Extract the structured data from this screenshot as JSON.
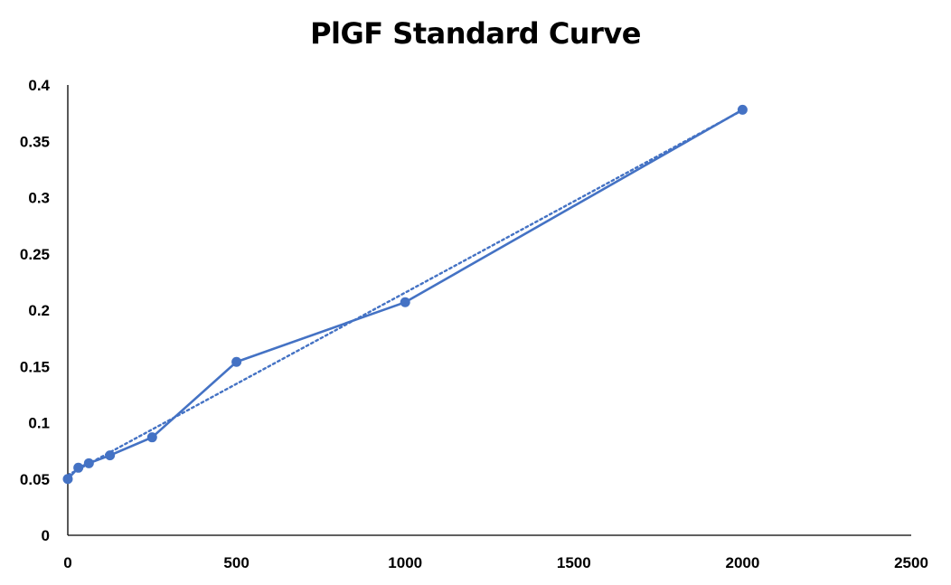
{
  "chart_data": {
    "type": "scatter",
    "title": "PlGF Standard Curve",
    "xlabel": "",
    "ylabel": "",
    "xlim": [
      0,
      2500
    ],
    "ylim": [
      0,
      0.4
    ],
    "x_ticks": [
      0,
      500,
      1000,
      1500,
      2000,
      2500
    ],
    "y_ticks": [
      0,
      0.05,
      0.1,
      0.15,
      0.2,
      0.25,
      0.3,
      0.35,
      0.4
    ],
    "x_tick_labels": [
      "0",
      "500",
      "1000",
      "1500",
      "2000",
      "2500"
    ],
    "y_tick_labels": [
      "0",
      "0.05",
      "0.1",
      "0.15",
      "0.2",
      "0.25",
      "0.3",
      "0.35",
      "0.4"
    ],
    "grid": false,
    "legend": "none",
    "series": [
      {
        "style": "line-with-markers",
        "color": "#4472C4",
        "x": [
          0,
          31.25,
          62.5,
          125,
          250,
          500,
          1000,
          2000
        ],
        "y": [
          0.05,
          0.06,
          0.064,
          0.071,
          0.087,
          0.154,
          0.207,
          0.378
        ]
      }
    ],
    "trendline": {
      "type": "linear",
      "style": "dotted",
      "color": "#4472C4",
      "x_range": [
        0,
        2000
      ]
    }
  }
}
